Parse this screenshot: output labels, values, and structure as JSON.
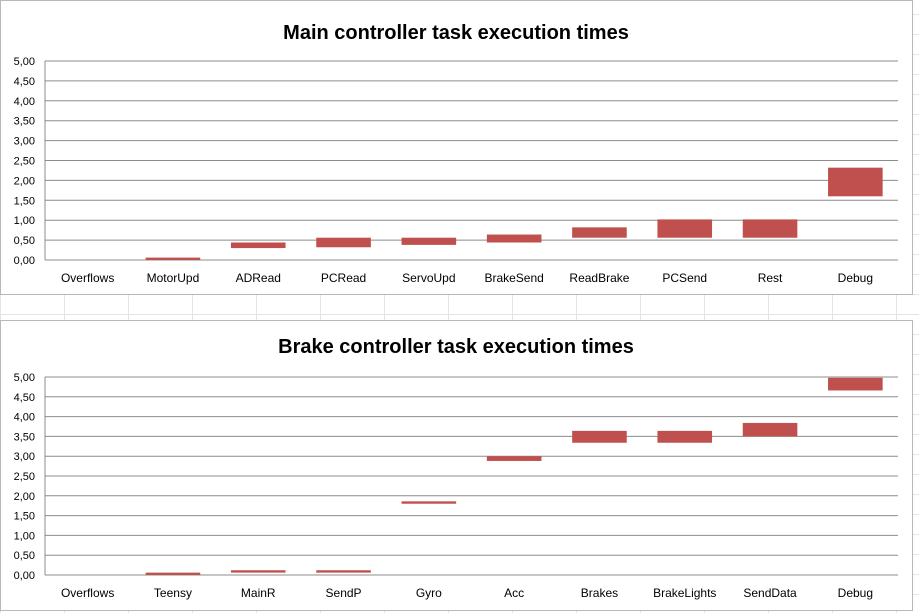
{
  "chart_data": [
    {
      "type": "floating-bar",
      "title": "Main controller task execution times",
      "xlabel": "",
      "ylabel": "",
      "ylim": [
        0,
        5
      ],
      "yticks": [
        "0,00",
        "0,50",
        "1,00",
        "1,50",
        "2,00",
        "2,50",
        "3,00",
        "3,50",
        "4,00",
        "4,50",
        "5,00"
      ],
      "categories": [
        "Overflows",
        "MotorUpd",
        "ADRead",
        "PCRead",
        "ServoUpd",
        "BrakeSend",
        "ReadBrake",
        "PCSend",
        "Rest",
        "Debug"
      ],
      "series": [
        {
          "color": "#c0504d",
          "low": [
            0,
            0.0,
            0.3,
            0.32,
            0.38,
            0.44,
            0.56,
            0.56,
            0.56,
            1.6
          ],
          "high": [
            0,
            0.06,
            0.44,
            0.56,
            0.56,
            0.64,
            0.82,
            1.02,
            1.02,
            2.32
          ]
        }
      ],
      "grid": true,
      "legend": "none"
    },
    {
      "type": "floating-bar",
      "title": "Brake controller task execution times",
      "xlabel": "",
      "ylabel": "",
      "ylim": [
        0,
        5
      ],
      "yticks": [
        "0,00",
        "0,50",
        "1,00",
        "1,50",
        "2,00",
        "2,50",
        "3,00",
        "3,50",
        "4,00",
        "4,50",
        "5,00"
      ],
      "categories": [
        "Overflows",
        "Teensy",
        "MainR",
        "SendP",
        "Gyro",
        "Acc",
        "Brakes",
        "BrakeLights",
        "SendData",
        "Debug"
      ],
      "series": [
        {
          "color": "#c0504d",
          "low": [
            0,
            0.0,
            0.06,
            0.06,
            1.8,
            2.88,
            3.34,
            3.34,
            3.5,
            4.66
          ],
          "high": [
            0,
            0.06,
            0.12,
            0.12,
            1.86,
            3.0,
            3.64,
            3.64,
            3.84,
            4.98
          ]
        }
      ],
      "grid": true,
      "legend": "none"
    }
  ]
}
